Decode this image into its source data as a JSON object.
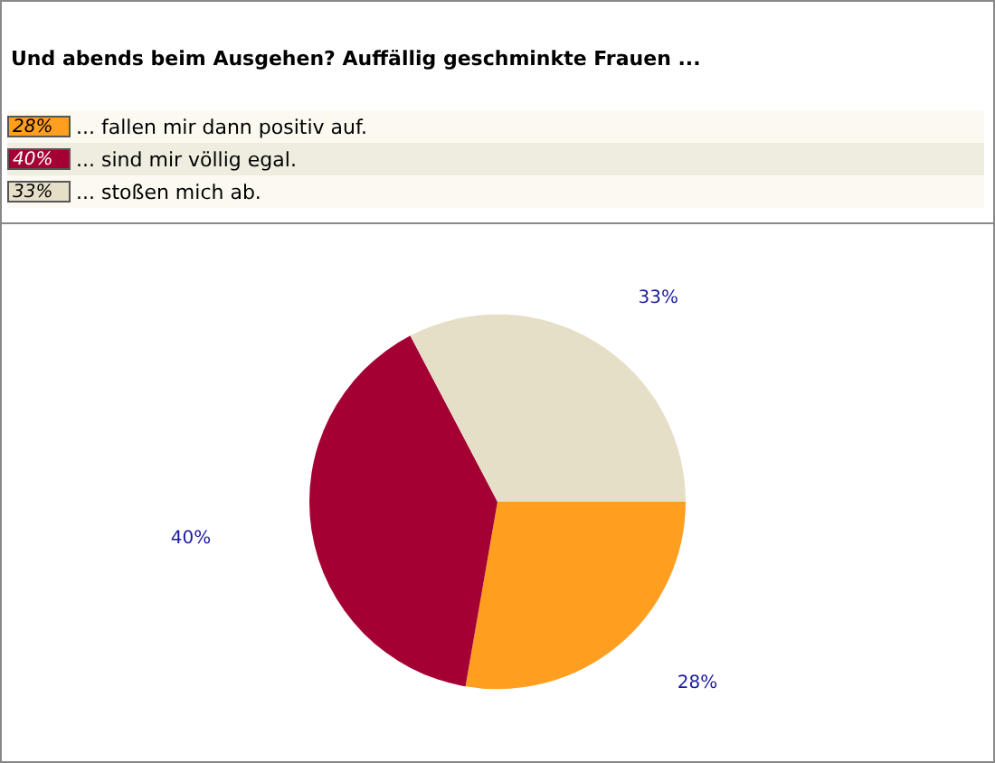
{
  "chart_data": {
    "type": "pie",
    "title": "Und abends beim Ausgehen? Auffällig geschminkte Frauen ...",
    "categories": [
      "... fallen mir dann positiv auf.",
      "... sind mir völlig egal.",
      "... stoßen mich ab."
    ],
    "values": [
      28,
      40,
      33
    ],
    "colors": [
      "#ff9e1f",
      "#a50034",
      "#e6dfc8"
    ],
    "value_labels": [
      "28%",
      "40%",
      "33%"
    ],
    "legend": "top"
  }
}
